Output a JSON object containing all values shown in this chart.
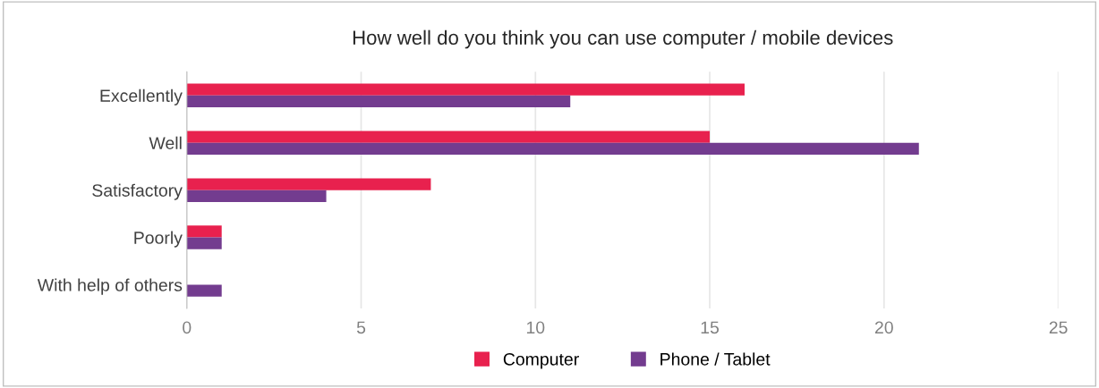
{
  "chart_data": {
    "type": "bar",
    "orientation": "horizontal",
    "title": "How well do you think you can use computer / mobile devices",
    "categories": [
      "Excellently",
      "Well",
      "Satisfactory",
      "Poorly",
      "With help of others"
    ],
    "series": [
      {
        "name": "Computer",
        "color": "#e8214e",
        "values": [
          16,
          15,
          7,
          1,
          0
        ]
      },
      {
        "name": "Phone / Tablet",
        "color": "#733c8f",
        "values": [
          11,
          21,
          4,
          1,
          1
        ]
      }
    ],
    "xlim": [
      0,
      25
    ],
    "xticks": [
      0,
      5,
      10,
      15,
      20,
      25
    ],
    "grid": "x",
    "legend": "bottom"
  }
}
